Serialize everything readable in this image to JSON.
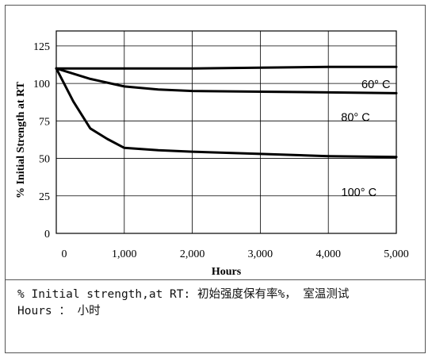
{
  "chart_data": {
    "type": "line",
    "title": "",
    "xlabel": "Hours",
    "ylabel": "% Initial Strength at RT",
    "xlim": [
      0,
      5000
    ],
    "ylim": [
      0,
      135
    ],
    "x_ticks": [
      0,
      1000,
      2000,
      3000,
      4000,
      5000
    ],
    "x_tick_labels": [
      "0",
      "1,000",
      "2,000",
      "3,000",
      "4,000",
      "5,000"
    ],
    "y_ticks": [
      0,
      25,
      50,
      75,
      100,
      125
    ],
    "y_tick_labels": [
      "0",
      "25",
      "50",
      "75",
      "100",
      "125"
    ],
    "grid": true,
    "series": [
      {
        "name": "60° C",
        "x": [
          0,
          1000,
          2000,
          3000,
          4000,
          5000
        ],
        "y": [
          110,
          110,
          110,
          110.5,
          111,
          111
        ]
      },
      {
        "name": "80° C",
        "x": [
          0,
          500,
          1000,
          1500,
          2000,
          3000,
          4000,
          5000
        ],
        "y": [
          110,
          103,
          98,
          96,
          95,
          94.5,
          94,
          93.5
        ]
      },
      {
        "name": "100° C",
        "x": [
          0,
          250,
          500,
          750,
          1000,
          1500,
          2000,
          3000,
          4000,
          5000
        ],
        "y": [
          110,
          88,
          70,
          63,
          57,
          55.5,
          54.5,
          53,
          51.5,
          51
        ]
      }
    ]
  },
  "caption": {
    "line1": "% Initial strength,at RT: 初始强度保有率%， 室温测试",
    "line2": "Hours ： 小时"
  }
}
